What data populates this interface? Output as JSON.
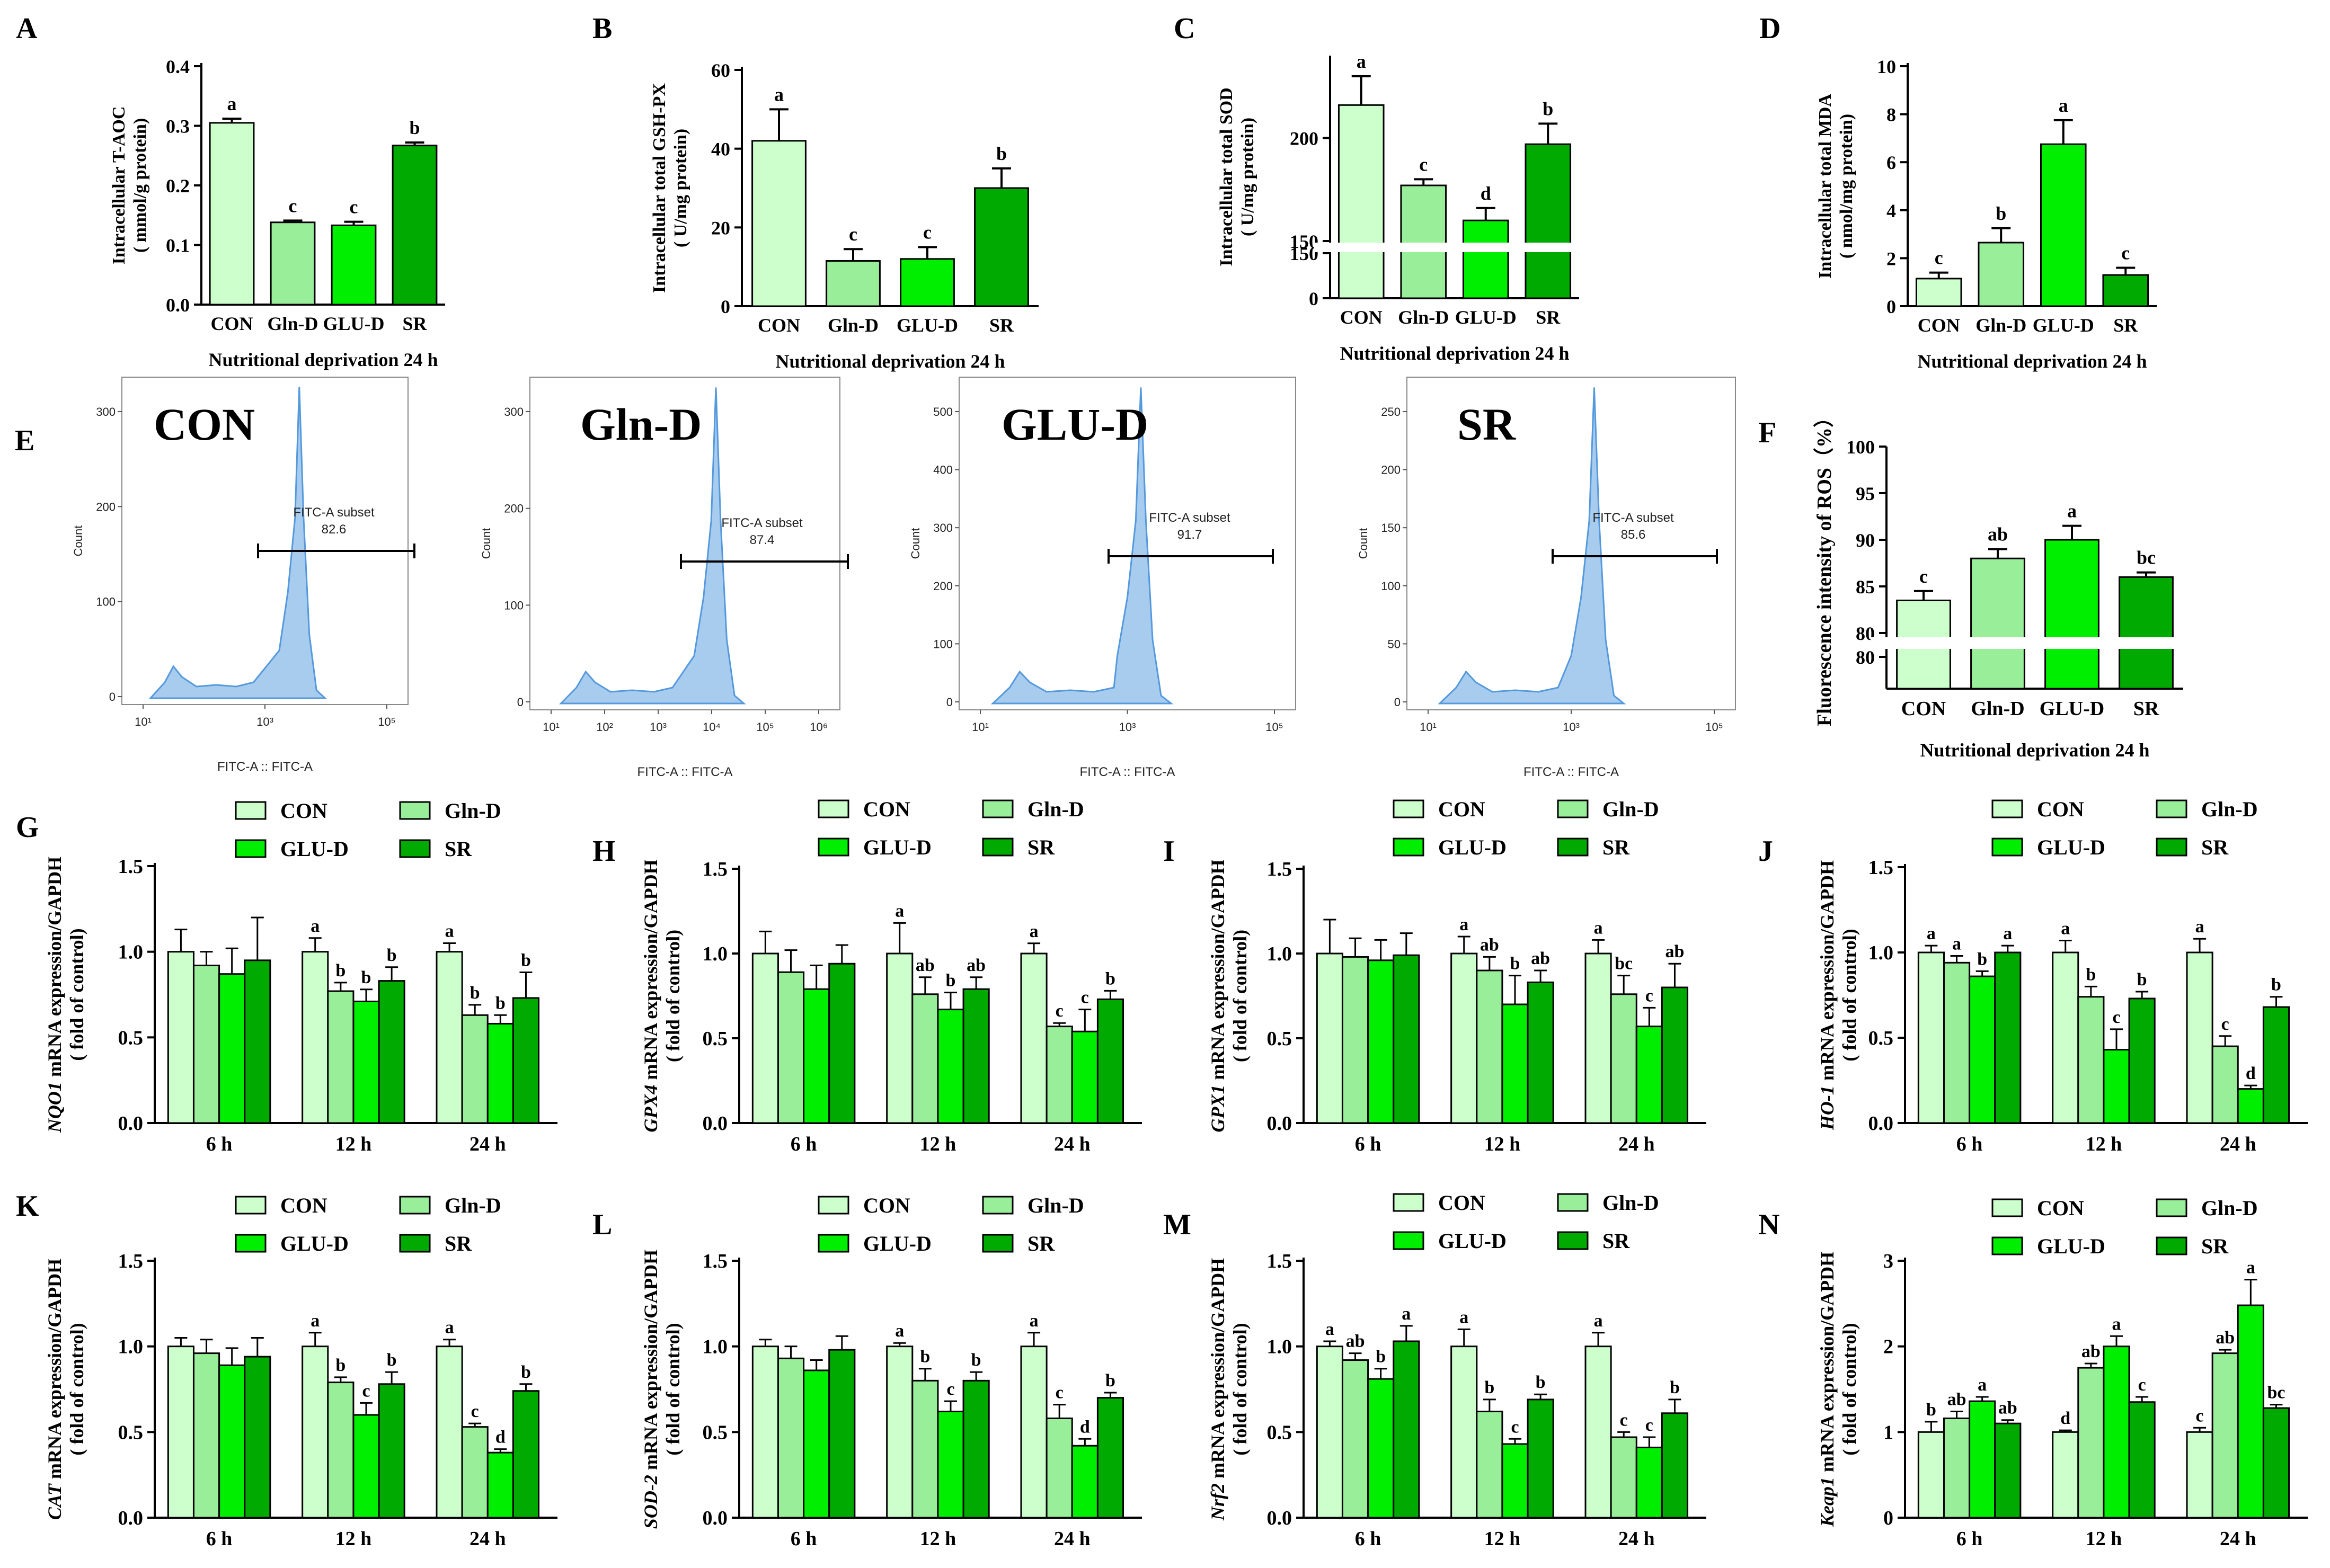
{
  "colors": {
    "CON": "#ccffcc",
    "Gln-D": "#99ee99",
    "GLU-D": "#00ee00",
    "SR": "#00aa00",
    "hist_fill": "#a8ccee",
    "hist_line": "#5599dd"
  },
  "chart_data": [
    {
      "panel": "A",
      "type": "bar",
      "categories": [
        "CON",
        "Gln-D",
        "GLU-D",
        "SR"
      ],
      "values": [
        0.305,
        0.138,
        0.133,
        0.267
      ],
      "errors": [
        0.007,
        0.003,
        0.006,
        0.005
      ],
      "letters": [
        "a",
        "c",
        "c",
        "b"
      ],
      "ylabel1": "Intracellular T-AOC",
      "ylabel2": "( mmol/g protein)",
      "xlabel": "Nutritional deprivation 24 h",
      "ylim": [
        0,
        0.4
      ],
      "yticks": [
        "0.0",
        "0.1",
        "0.2",
        "0.3",
        "0.4"
      ]
    },
    {
      "panel": "B",
      "type": "bar",
      "categories": [
        "CON",
        "Gln-D",
        "GLU-D",
        "SR"
      ],
      "values": [
        42,
        11.5,
        12,
        30
      ],
      "errors": [
        8,
        3,
        3,
        5
      ],
      "letters": [
        "a",
        "c",
        "c",
        "b"
      ],
      "ylabel1": "Intracellular total GSH-PX",
      "ylabel2": "( U/mg protein)",
      "xlabel": "Nutritional deprivation 24 h",
      "ylim": [
        0,
        60
      ],
      "yticks": [
        "0",
        "20",
        "40",
        "60"
      ]
    },
    {
      "panel": "C",
      "type": "bar",
      "categories": [
        "CON",
        "Gln-D",
        "GLU-D",
        "SR"
      ],
      "values": [
        216,
        177,
        160,
        197
      ],
      "errors": [
        14,
        3,
        6,
        10
      ],
      "letters": [
        "a",
        "c",
        "d",
        "b"
      ],
      "ylabel1": "Intracellular total SOD",
      "ylabel2": "( U/mg protein)",
      "xlabel": "Nutritional deprivation 24 h",
      "ylim": [
        0,
        240
      ],
      "break": [
        150,
        150
      ],
      "yticks": [
        "0",
        "150",
        "150",
        "200"
      ]
    },
    {
      "panel": "D",
      "type": "bar",
      "categories": [
        "CON",
        "Gln-D",
        "GLU-D",
        "SR"
      ],
      "values": [
        1.15,
        2.65,
        6.75,
        1.3
      ],
      "errors": [
        0.25,
        0.6,
        1.0,
        0.3
      ],
      "letters": [
        "c",
        "b",
        "a",
        "c"
      ],
      "ylabel1": "Intracellular total MDA",
      "ylabel2": "( nmol/mg protein)",
      "xlabel": "Nutritional deprivation 24 h",
      "ylim": [
        0,
        10
      ],
      "yticks": [
        "0",
        "2",
        "4",
        "6",
        "8",
        "10"
      ]
    },
    {
      "panel": "E",
      "type": "histogram",
      "groups": [
        {
          "name": "CON",
          "gate_label": "FITC-A subset",
          "gate_value": "82.6",
          "y_max": 300,
          "yticks": [
            "0",
            "100",
            "200",
            "300"
          ],
          "xticks": [
            "10¹",
            "10³",
            "10⁵"
          ]
        },
        {
          "name": "Gln-D",
          "gate_label": "FITC-A subset",
          "gate_value": "87.4",
          "y_max": 300,
          "yticks": [
            "0",
            "100",
            "200",
            "300"
          ],
          "xticks": [
            "10¹",
            "10²",
            "10³",
            "10⁴",
            "10⁵",
            "10⁶"
          ]
        },
        {
          "name": "GLU-D",
          "gate_label": "FITC-A subset",
          "gate_value": "91.7",
          "y_max": 500,
          "yticks": [
            "0",
            "100",
            "200",
            "300",
            "400",
            "500"
          ],
          "xticks": [
            "10¹",
            "10³",
            "10⁵"
          ]
        },
        {
          "name": "SR",
          "gate_label": "FITC-A subset",
          "gate_value": "85.6",
          "y_max": 250,
          "yticks": [
            "0",
            "50",
            "100",
            "150",
            "200",
            "250"
          ],
          "xticks": [
            "10¹",
            "10³",
            "10⁵"
          ]
        }
      ],
      "ylabel": "Count",
      "xlabel": "FITC-A :: FITC-A"
    },
    {
      "panel": "F",
      "type": "bar",
      "categories": [
        "CON",
        "Gln-D",
        "GLU-D",
        "SR"
      ],
      "values": [
        83.5,
        88,
        90,
        86
      ],
      "errors": [
        1,
        1,
        1.5,
        0.5
      ],
      "letters": [
        "c",
        "ab",
        "a",
        "bc"
      ],
      "ylabel1": "Fluorescence intensity of ROS（%）",
      "xlabel": "Nutritional deprivation 24 h",
      "ylim": [
        80,
        100
      ],
      "yticks": [
        "80",
        "80",
        "85",
        "90",
        "95",
        "100"
      ]
    },
    {
      "panel": "G",
      "type": "grouped_bar",
      "gene": "NQO1",
      "x": [
        "6 h",
        "12 h",
        "24 h"
      ],
      "series": [
        {
          "name": "CON",
          "values": [
            1.0,
            1.0,
            1.0
          ],
          "errors": [
            0.13,
            0.08,
            0.05
          ]
        },
        {
          "name": "Gln-D",
          "values": [
            0.92,
            0.77,
            0.63
          ],
          "errors": [
            0.08,
            0.05,
            0.06
          ]
        },
        {
          "name": "GLU-D",
          "values": [
            0.87,
            0.71,
            0.58
          ],
          "errors": [
            0.15,
            0.07,
            0.05
          ]
        },
        {
          "name": "SR",
          "values": [
            0.95,
            0.83,
            0.73
          ],
          "errors": [
            0.25,
            0.08,
            0.15
          ]
        }
      ],
      "letters": [
        [
          "",
          "",
          "",
          ""
        ],
        [
          "a",
          "b",
          "b",
          "b"
        ],
        [
          "a",
          "b",
          "b",
          "b"
        ]
      ],
      "ylim": [
        0,
        1.5
      ],
      "yticks": [
        "0.0",
        "0.5",
        "1.0",
        "1.5"
      ]
    },
    {
      "panel": "H",
      "type": "grouped_bar",
      "gene": "GPX4",
      "x": [
        "6 h",
        "12 h",
        "24 h"
      ],
      "series": [
        {
          "name": "CON",
          "values": [
            1.0,
            1.0,
            1.0
          ],
          "errors": [
            0.13,
            0.18,
            0.06
          ]
        },
        {
          "name": "Gln-D",
          "values": [
            0.89,
            0.76,
            0.57
          ],
          "errors": [
            0.13,
            0.1,
            0.02
          ]
        },
        {
          "name": "GLU-D",
          "values": [
            0.79,
            0.67,
            0.54
          ],
          "errors": [
            0.14,
            0.1,
            0.13
          ]
        },
        {
          "name": "SR",
          "values": [
            0.94,
            0.79,
            0.73
          ],
          "errors": [
            0.11,
            0.07,
            0.05
          ]
        }
      ],
      "letters": [
        [
          "",
          "",
          "",
          ""
        ],
        [
          "a",
          "ab",
          "b",
          "ab"
        ],
        [
          "a",
          "c",
          "c",
          "b"
        ]
      ],
      "ylim": [
        0,
        1.5
      ],
      "yticks": [
        "0.0",
        "0.5",
        "1.0",
        "1.5"
      ]
    },
    {
      "panel": "I",
      "type": "grouped_bar",
      "gene": "GPX1",
      "x": [
        "6 h",
        "12 h",
        "24 h"
      ],
      "series": [
        {
          "name": "CON",
          "values": [
            1.0,
            1.0,
            1.0
          ],
          "errors": [
            0.2,
            0.1,
            0.08
          ]
        },
        {
          "name": "Gln-D",
          "values": [
            0.98,
            0.9,
            0.76
          ],
          "errors": [
            0.11,
            0.08,
            0.11
          ]
        },
        {
          "name": "GLU-D",
          "values": [
            0.96,
            0.7,
            0.57
          ],
          "errors": [
            0.12,
            0.17,
            0.11
          ]
        },
        {
          "name": "SR",
          "values": [
            0.99,
            0.83,
            0.8
          ],
          "errors": [
            0.13,
            0.07,
            0.14
          ]
        }
      ],
      "letters": [
        [
          "",
          "",
          "",
          ""
        ],
        [
          "a",
          "ab",
          "b",
          "ab"
        ],
        [
          "a",
          "bc",
          "c",
          "ab"
        ]
      ],
      "ylim": [
        0,
        1.5
      ],
      "yticks": [
        "0.0",
        "0.5",
        "1.0",
        "1.5"
      ]
    },
    {
      "panel": "J",
      "type": "grouped_bar",
      "gene": "HO-1",
      "x": [
        "6 h",
        "12 h",
        "24 h"
      ],
      "series": [
        {
          "name": "CON",
          "values": [
            1.0,
            1.0,
            1.0
          ],
          "errors": [
            0.04,
            0.07,
            0.08
          ]
        },
        {
          "name": "Gln-D",
          "values": [
            0.94,
            0.74,
            0.45
          ],
          "errors": [
            0.04,
            0.06,
            0.06
          ]
        },
        {
          "name": "GLU-D",
          "values": [
            0.86,
            0.43,
            0.2
          ],
          "errors": [
            0.03,
            0.12,
            0.02
          ]
        },
        {
          "name": "SR",
          "values": [
            1.0,
            0.73,
            0.68
          ],
          "errors": [
            0.04,
            0.04,
            0.06
          ]
        }
      ],
      "letters": [
        [
          "a",
          "a",
          "b",
          "a"
        ],
        [
          "a",
          "b",
          "c",
          "b"
        ],
        [
          "a",
          "c",
          "d",
          "b"
        ]
      ],
      "ylim": [
        0,
        1.5
      ],
      "yticks": [
        "0.0",
        "0.5",
        "1.0",
        "1.5"
      ]
    },
    {
      "panel": "K",
      "type": "grouped_bar",
      "gene": "CAT",
      "x": [
        "6 h",
        "12 h",
        "24 h"
      ],
      "series": [
        {
          "name": "CON",
          "values": [
            1.0,
            1.0,
            1.0
          ],
          "errors": [
            0.05,
            0.08,
            0.04
          ]
        },
        {
          "name": "Gln-D",
          "values": [
            0.96,
            0.79,
            0.53
          ],
          "errors": [
            0.08,
            0.03,
            0.02
          ]
        },
        {
          "name": "GLU-D",
          "values": [
            0.89,
            0.6,
            0.38
          ],
          "errors": [
            0.1,
            0.07,
            0.02
          ]
        },
        {
          "name": "SR",
          "values": [
            0.94,
            0.78,
            0.74
          ],
          "errors": [
            0.11,
            0.07,
            0.04
          ]
        }
      ],
      "letters": [
        [
          "",
          "",
          "",
          ""
        ],
        [
          "a",
          "b",
          "c",
          "b"
        ],
        [
          "a",
          "c",
          "d",
          "b"
        ]
      ],
      "ylim": [
        0,
        1.5
      ],
      "yticks": [
        "0.0",
        "0.5",
        "1.0",
        "1.5"
      ]
    },
    {
      "panel": "L",
      "type": "grouped_bar",
      "gene": "SOD-2",
      "x": [
        "6 h",
        "12 h",
        "24 h"
      ],
      "series": [
        {
          "name": "CON",
          "values": [
            1.0,
            1.0,
            1.0
          ],
          "errors": [
            0.04,
            0.02,
            0.08
          ]
        },
        {
          "name": "Gln-D",
          "values": [
            0.93,
            0.8,
            0.58
          ],
          "errors": [
            0.07,
            0.07,
            0.08
          ]
        },
        {
          "name": "GLU-D",
          "values": [
            0.86,
            0.62,
            0.42
          ],
          "errors": [
            0.06,
            0.06,
            0.04
          ]
        },
        {
          "name": "SR",
          "values": [
            0.98,
            0.8,
            0.7
          ],
          "errors": [
            0.08,
            0.05,
            0.03
          ]
        }
      ],
      "letters": [
        [
          "",
          "",
          "",
          ""
        ],
        [
          "a",
          "b",
          "c",
          "b"
        ],
        [
          "a",
          "c",
          "d",
          "b"
        ]
      ],
      "ylim": [
        0,
        1.5
      ],
      "yticks": [
        "0.0",
        "0.5",
        "1.0",
        "1.5"
      ]
    },
    {
      "panel": "M",
      "type": "grouped_bar",
      "gene": "Nrf2",
      "x": [
        "6 h",
        "12 h",
        "24 h"
      ],
      "series": [
        {
          "name": "CON",
          "values": [
            1.0,
            1.0,
            1.0
          ],
          "errors": [
            0.03,
            0.1,
            0.08
          ]
        },
        {
          "name": "Gln-D",
          "values": [
            0.92,
            0.62,
            0.47
          ],
          "errors": [
            0.04,
            0.07,
            0.03
          ]
        },
        {
          "name": "GLU-D",
          "values": [
            0.81,
            0.43,
            0.41
          ],
          "errors": [
            0.06,
            0.03,
            0.06
          ]
        },
        {
          "name": "SR",
          "values": [
            1.03,
            0.69,
            0.61
          ],
          "errors": [
            0.09,
            0.03,
            0.08
          ]
        }
      ],
      "letters": [
        [
          "a",
          "ab",
          "b",
          "a"
        ],
        [
          "a",
          "b",
          "c",
          "b"
        ],
        [
          "a",
          "c",
          "c",
          "b"
        ]
      ],
      "ylim": [
        0,
        1.5
      ],
      "yticks": [
        "0.0",
        "0.5",
        "1.0",
        "1.5"
      ]
    },
    {
      "panel": "N",
      "type": "grouped_bar",
      "gene": "Keap1",
      "x": [
        "6 h",
        "12 h",
        "24 h"
      ],
      "series": [
        {
          "name": "CON",
          "values": [
            1.0,
            1.0,
            1.0
          ],
          "errors": [
            0.12,
            0.02,
            0.05
          ]
        },
        {
          "name": "Gln-D",
          "values": [
            1.16,
            1.75,
            1.92
          ],
          "errors": [
            0.08,
            0.05,
            0.04
          ]
        },
        {
          "name": "GLU-D",
          "values": [
            1.36,
            2.0,
            2.48
          ],
          "errors": [
            0.05,
            0.12,
            0.3
          ]
        },
        {
          "name": "SR",
          "values": [
            1.1,
            1.35,
            1.28
          ],
          "errors": [
            0.04,
            0.06,
            0.04
          ]
        }
      ],
      "letters": [
        [
          "b",
          "ab",
          "a",
          "ab"
        ],
        [
          "d",
          "ab",
          "a",
          "c"
        ],
        [
          "c",
          "ab",
          "a",
          "bc"
        ]
      ],
      "ylim": [
        0,
        3
      ],
      "yticks": [
        "0",
        "1",
        "2",
        "3"
      ]
    }
  ],
  "labels": {
    "legend": [
      "CON",
      "Gln-D",
      "GLU-D",
      "SR"
    ],
    "qpcr_ylabel_suffix": " mRNA expression/GAPDH",
    "qpcr_ylabel2": "( fold of control)"
  }
}
